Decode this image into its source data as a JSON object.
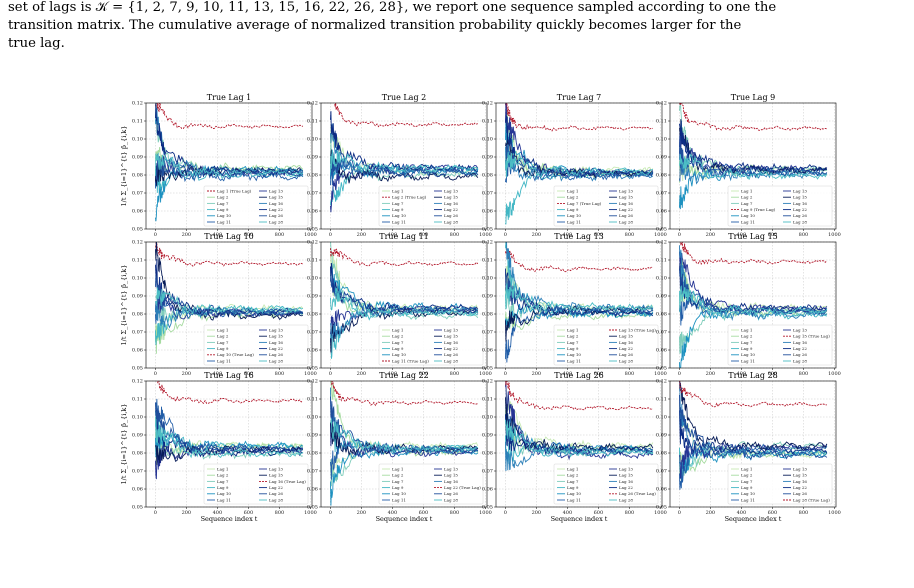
{
  "caption": {
    "line1_visible": "transition matrix. The cumulative average of normalized transition probability quickly becomes larger for the",
    "line0": "set of lags is 𝒦 = {1, 2, 7, 9, 10, 11, 13, 15, 16, 22, 26, 28}, we report one sequence sampled according to one the",
    "line2": "true lag."
  },
  "colors": {
    "true_lag": "#b2182b",
    "palette": [
      "#c7e9b4",
      "#a6dba0",
      "#7fcdbb",
      "#41b6c4",
      "#1d91c0",
      "#225ea8",
      "#253494",
      "#081d58",
      "#2c7fb8",
      "#0c2c84",
      "#1f4e9c",
      "#4cbdc4"
    ]
  },
  "chart_data": {
    "type": "line",
    "layout": "3x4 grid of line charts",
    "lags": [
      1,
      2,
      7,
      9,
      10,
      11,
      13,
      15,
      16,
      22,
      26,
      28
    ],
    "panel_titles": [
      "True Lag 1",
      "True Lag 2",
      "True Lag 7",
      "True Lag 9",
      "True Lag 10",
      "True Lag 11",
      "True Lag 13",
      "True Lag 15",
      "True Lag 16",
      "True Lag 22",
      "True Lag 26",
      "True Lag 28"
    ],
    "xlabel": "Sequence index t",
    "ylabel": "1/t Σ_{i=1}^{t} p̃_{i,k}",
    "xlim": [
      -60,
      1010
    ],
    "ylim": [
      0.05,
      0.12
    ],
    "xticks": [
      0,
      200,
      400,
      600,
      800,
      1000
    ],
    "yticks": [
      0.05,
      0.06,
      0.07,
      0.08,
      0.09,
      0.1,
      0.11,
      0.12
    ],
    "grid": true,
    "legend_position": "lower-right",
    "legend_entries": [
      "Lag 1",
      "Lag 2",
      "Lag 7",
      "Lag 9",
      "Lag 10",
      "Lag 11",
      "Lag 13",
      "Lag 15",
      "Lag 16",
      "Lag 22",
      "Lag 26",
      "Lag 28"
    ],
    "true_lag_label_suffix": " (True Lag)",
    "true_lag_plateau": [
      0.107,
      0.108,
      0.106,
      0.106,
      0.108,
      0.108,
      0.105,
      0.109,
      0.109,
      0.108,
      0.105,
      0.107
    ],
    "other_lags_plateau_range": [
      0.079,
      0.084
    ]
  }
}
